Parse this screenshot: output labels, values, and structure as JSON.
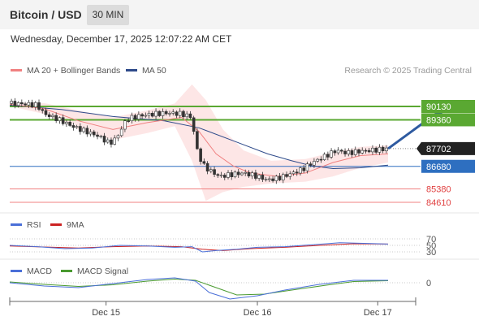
{
  "header": {
    "title": "Bitcoin / USD",
    "timeframe": "30 MIN",
    "datetime": "Wednesday, December 17, 2025 12:07:22 AM CET"
  },
  "legend": {
    "ma20": "MA 20 + Bollinger Bands",
    "ma50": "MA 50",
    "credit": "Research © 2025 Trading Central",
    "rsi": "RSI",
    "rsi_ma": "9MA",
    "macd": "MACD",
    "macd_signal": "MACD Signal"
  },
  "colors": {
    "ma20": "#f08080",
    "ma50": "#2e4a8a",
    "bands_fill": "#fde2e2",
    "resistance": "#5aa832",
    "support": "#2e6fc0",
    "support_red": "#f08080",
    "arrow": "#2e5aa0",
    "rsi_line": "#4a6fd8",
    "rsi_ma_line": "#cc2222",
    "macd_line": "#4a6fd8",
    "signal_line": "#4a9a30"
  },
  "chart_data": {
    "type": "candlestick",
    "price_levels": [
      {
        "value": 90130,
        "label": "90130",
        "kind": "resistance"
      },
      {
        "value": 89360,
        "label": "89360",
        "kind": "resistance"
      },
      {
        "value": 87702,
        "label": "87702",
        "kind": "last_price"
      },
      {
        "value": 86680,
        "label": "86680",
        "kind": "pivot"
      },
      {
        "value": 85380,
        "label": "85380",
        "kind": "support"
      },
      {
        "value": 84610,
        "label": "84610",
        "kind": "support"
      }
    ],
    "x_ticks": [
      "Dec 15",
      "Dec 16",
      "Dec 17"
    ],
    "rsi_levels": [
      "70",
      "50",
      "30"
    ],
    "macd_levels": [
      "0"
    ],
    "price_path": [
      [
        0,
        90300
      ],
      [
        4,
        90280
      ],
      [
        8,
        90200
      ],
      [
        10,
        89700
      ],
      [
        14,
        89400
      ],
      [
        18,
        89000
      ],
      [
        22,
        88700
      ],
      [
        26,
        88400
      ],
      [
        29,
        88000
      ],
      [
        31,
        88300
      ],
      [
        34,
        89400
      ],
      [
        38,
        89600
      ],
      [
        42,
        89700
      ],
      [
        46,
        89760
      ],
      [
        50,
        89700
      ],
      [
        53,
        89500
      ],
      [
        54,
        87900
      ],
      [
        56,
        86800
      ],
      [
        58,
        86450
      ],
      [
        61,
        86100
      ],
      [
        64,
        86200
      ],
      [
        68,
        86300
      ],
      [
        72,
        86100
      ],
      [
        75,
        85900
      ],
      [
        78,
        86000
      ],
      [
        81,
        86200
      ],
      [
        85,
        86500
      ],
      [
        88,
        86900
      ],
      [
        92,
        87300
      ],
      [
        95,
        87600
      ],
      [
        98,
        87450
      ],
      [
        102,
        87550
      ],
      [
        106,
        87620
      ],
      [
        110,
        87702
      ]
    ],
    "ma20_path": [
      [
        0,
        90250
      ],
      [
        10,
        90000
      ],
      [
        20,
        89300
      ],
      [
        30,
        88800
      ],
      [
        40,
        89200
      ],
      [
        50,
        89500
      ],
      [
        55,
        88700
      ],
      [
        60,
        87400
      ],
      [
        65,
        86700
      ],
      [
        70,
        86300
      ],
      [
        78,
        86100
      ],
      [
        86,
        86300
      ],
      [
        94,
        86900
      ],
      [
        102,
        87300
      ],
      [
        110,
        87400
      ]
    ],
    "ma50_path": [
      [
        0,
        90200
      ],
      [
        15,
        89950
      ],
      [
        30,
        89550
      ],
      [
        45,
        89300
      ],
      [
        55,
        88900
      ],
      [
        65,
        88150
      ],
      [
        75,
        87400
      ],
      [
        82,
        87000
      ],
      [
        88,
        86700
      ],
      [
        94,
        86550
      ],
      [
        102,
        86600
      ],
      [
        110,
        86750
      ]
    ],
    "upper_band_path": [
      [
        0,
        90350
      ],
      [
        10,
        90320
      ],
      [
        20,
        89900
      ],
      [
        30,
        89500
      ],
      [
        40,
        89900
      ],
      [
        48,
        90300
      ],
      [
        53,
        91400
      ],
      [
        57,
        90500
      ],
      [
        62,
        88800
      ],
      [
        68,
        87600
      ],
      [
        76,
        87000
      ],
      [
        86,
        87100
      ],
      [
        94,
        87500
      ],
      [
        102,
        87800
      ],
      [
        110,
        87900
      ]
    ],
    "lower_band_path": [
      [
        0,
        90150
      ],
      [
        10,
        89700
      ],
      [
        20,
        88800
      ],
      [
        30,
        88200
      ],
      [
        40,
        88600
      ],
      [
        48,
        89000
      ],
      [
        53,
        87000
      ],
      [
        57,
        84700
      ],
      [
        62,
        85200
      ],
      [
        68,
        85500
      ],
      [
        76,
        85700
      ],
      [
        86,
        85800
      ],
      [
        94,
        86100
      ],
      [
        102,
        86600
      ],
      [
        110,
        86900
      ]
    ],
    "forecast_arrow": {
      "from": [
        110,
        87702
      ],
      "to": [
        125,
        90000
      ]
    },
    "rsi_path": [
      [
        0,
        50
      ],
      [
        8,
        46
      ],
      [
        16,
        40
      ],
      [
        24,
        42
      ],
      [
        32,
        50
      ],
      [
        40,
        48
      ],
      [
        48,
        44
      ],
      [
        53,
        46
      ],
      [
        56,
        30
      ],
      [
        60,
        34
      ],
      [
        66,
        38
      ],
      [
        72,
        44
      ],
      [
        80,
        46
      ],
      [
        88,
        52
      ],
      [
        96,
        58
      ],
      [
        104,
        56
      ],
      [
        110,
        54
      ]
    ],
    "rsi_ma_path": [
      [
        0,
        48
      ],
      [
        10,
        45
      ],
      [
        20,
        42
      ],
      [
        30,
        46
      ],
      [
        40,
        48
      ],
      [
        50,
        46
      ],
      [
        56,
        38
      ],
      [
        62,
        34
      ],
      [
        70,
        40
      ],
      [
        80,
        44
      ],
      [
        90,
        50
      ],
      [
        100,
        55
      ],
      [
        110,
        54
      ]
    ],
    "macd_path": [
      [
        0,
        0
      ],
      [
        10,
        -40
      ],
      [
        20,
        -60
      ],
      [
        30,
        -10
      ],
      [
        40,
        40
      ],
      [
        48,
        60
      ],
      [
        54,
        20
      ],
      [
        58,
        -120
      ],
      [
        64,
        -200
      ],
      [
        72,
        -160
      ],
      [
        80,
        -90
      ],
      [
        90,
        -20
      ],
      [
        100,
        30
      ],
      [
        110,
        30
      ]
    ],
    "signal_path": [
      [
        0,
        10
      ],
      [
        10,
        -20
      ],
      [
        20,
        -45
      ],
      [
        30,
        -25
      ],
      [
        40,
        20
      ],
      [
        48,
        45
      ],
      [
        54,
        30
      ],
      [
        60,
        -60
      ],
      [
        66,
        -150
      ],
      [
        74,
        -140
      ],
      [
        82,
        -90
      ],
      [
        92,
        -30
      ],
      [
        100,
        15
      ],
      [
        110,
        25
      ]
    ]
  }
}
